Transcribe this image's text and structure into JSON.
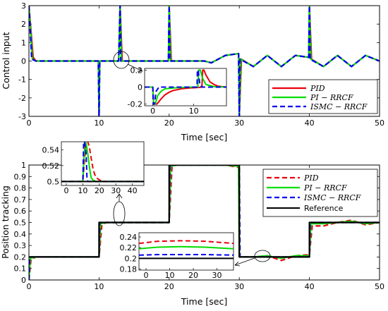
{
  "chart_data": [
    {
      "type": "line",
      "xlabel": "Time [sec]",
      "ylabel": "Control input",
      "xlim": [
        0,
        50
      ],
      "ylim": [
        -3,
        3
      ],
      "xticks": [
        0,
        10,
        20,
        30,
        40,
        50
      ],
      "yticks": [
        -3,
        -2,
        -1,
        0,
        1,
        2,
        3
      ],
      "legend_position": "bottom-right",
      "series": [
        {
          "name": "PID",
          "color": "#e8000b",
          "dash": "solid",
          "x": [
            0,
            0.6,
            1,
            9.9,
            10,
            10.1,
            11,
            12.8,
            13,
            13.3,
            15,
            19.9,
            20,
            20.3,
            25,
            26,
            28,
            29.9,
            30,
            30.3,
            32,
            34,
            36,
            38,
            39.9,
            40,
            40.3,
            42,
            44,
            46,
            48,
            50
          ],
          "y": [
            3,
            0.2,
            0,
            0,
            -3,
            0,
            0,
            0,
            3,
            0,
            0,
            0,
            3,
            0,
            0,
            -0.1,
            0.3,
            0.4,
            -3,
            0.1,
            -0.3,
            0.3,
            -0.3,
            0.3,
            0.2,
            3,
            0.1,
            -0.3,
            0.3,
            -0.3,
            0.3,
            0
          ]
        },
        {
          "name": "PI − RRCF",
          "color": "#00dd00",
          "dash": "solid",
          "x": [
            0,
            0.5,
            1,
            9.9,
            10,
            10.1,
            11,
            12.8,
            13,
            13.2,
            15,
            19.9,
            20,
            20.2,
            25,
            26,
            28,
            29.9,
            30,
            30.2,
            32,
            34,
            36,
            38,
            39.9,
            40,
            40.2,
            42,
            44,
            46,
            48,
            50
          ],
          "y": [
            3,
            0.1,
            0,
            0,
            -3,
            0,
            0,
            0,
            3,
            0,
            0,
            0,
            3,
            0,
            0,
            -0.1,
            0.3,
            0.4,
            -3,
            0.1,
            -0.3,
            0.3,
            -0.3,
            0.3,
            0.2,
            3,
            0.1,
            -0.3,
            0.3,
            -0.3,
            0.3,
            0
          ]
        },
        {
          "name": "ISMC − RRCF",
          "color": "#0000ee",
          "dash": "dashed",
          "x": [
            0,
            0.4,
            1,
            9.9,
            10,
            10.1,
            11,
            12.8,
            13,
            13.1,
            15,
            19.9,
            20,
            20.1,
            25,
            26,
            28,
            29.9,
            30,
            30.1,
            32,
            34,
            36,
            38,
            39.9,
            40,
            40.1,
            42,
            44,
            46,
            48,
            50
          ],
          "y": [
            3,
            0.1,
            0,
            0,
            -3,
            0,
            0,
            0,
            3,
            0,
            0,
            0,
            3,
            0,
            0,
            -0.1,
            0.3,
            0.4,
            -3,
            0.1,
            -0.3,
            0.3,
            -0.3,
            0.3,
            0.2,
            3,
            0.1,
            -0.3,
            0.3,
            -0.3,
            0.3,
            0
          ]
        }
      ],
      "inset": {
        "xticks": [
          0,
          10
        ],
        "yticks": [
          -0.2,
          0,
          0.2
        ],
        "xlim": [
          -2,
          18
        ],
        "ylim": [
          -0.22,
          0.22
        ],
        "series": [
          {
            "name": "PID",
            "color": "#e8000b",
            "dash": "solid",
            "x": [
              -2,
              0,
              0.2,
              1,
              2,
              3,
              4,
              5,
              7,
              9,
              11,
              12,
              12.2,
              12.5,
              13,
              14,
              15,
              16,
              18
            ],
            "y": [
              0,
              0,
              -0.2,
              -0.2,
              -0.14,
              -0.09,
              -0.06,
              -0.04,
              -0.02,
              -0.01,
              -0.005,
              0,
              0.2,
              0.2,
              0.14,
              0.06,
              0.03,
              0.01,
              0
            ]
          },
          {
            "name": "PI − RRCF",
            "color": "#00dd00",
            "dash": "solid",
            "x": [
              -2,
              0,
              0.2,
              0.6,
              1.2,
              2,
              3,
              5,
              9,
              11,
              11.2,
              11.6,
              12.2,
              13,
              15,
              18
            ],
            "y": [
              0,
              0,
              -0.2,
              -0.2,
              -0.1,
              -0.05,
              -0.02,
              -0.01,
              0,
              0,
              0.2,
              0.2,
              0.1,
              0.03,
              0.005,
              0
            ]
          },
          {
            "name": "ISMC − RRCF",
            "color": "#0000ee",
            "dash": "dashed",
            "x": [
              -2,
              0,
              0.1,
              0.4,
              0.8,
              1.5,
              3,
              9,
              10.8,
              10.9,
              11.1,
              11.5,
              12,
              18
            ],
            "y": [
              0,
              0,
              -0.2,
              -0.2,
              -0.05,
              0,
              0,
              0,
              0,
              0.2,
              0.2,
              0.03,
              0,
              0
            ]
          }
        ]
      }
    },
    {
      "type": "line",
      "xlabel": "Time [sec]",
      "ylabel": "Position tracking",
      "xlim": [
        0,
        50
      ],
      "ylim": [
        0,
        1
      ],
      "xticks": [
        0,
        10,
        20,
        30,
        40,
        50
      ],
      "yticks": [
        0,
        0.1,
        0.2,
        0.3,
        0.4,
        0.5,
        0.6,
        0.7,
        0.8,
        0.9,
        1
      ],
      "legend_position": "top-right",
      "series": [
        {
          "name": "PID",
          "color": "#e8000b",
          "dash": "dashed",
          "x": [
            0,
            0.3,
            1,
            10,
            10.4,
            11,
            20,
            20.4,
            21,
            28,
            29.9,
            30,
            30.4,
            32,
            34,
            36,
            38,
            40,
            40.4,
            42,
            44,
            46,
            48,
            50
          ],
          "y": [
            0,
            0.18,
            0.2,
            0.2,
            0.48,
            0.5,
            0.5,
            0.98,
            1,
            1,
            0.98,
            0.22,
            0.2,
            0.2,
            0.21,
            0.17,
            0.21,
            0.22,
            0.47,
            0.47,
            0.5,
            0.52,
            0.48,
            0.5
          ]
        },
        {
          "name": "PI − RRCF",
          "color": "#00dd00",
          "dash": "solid",
          "x": [
            0,
            0.2,
            1,
            10,
            10.2,
            11,
            20,
            20.2,
            21,
            28,
            29.9,
            30,
            30.2,
            32,
            34,
            36,
            38,
            40,
            40.2,
            42,
            44,
            46,
            48,
            50
          ],
          "y": [
            0,
            0.19,
            0.2,
            0.2,
            0.49,
            0.5,
            0.5,
            0.99,
            1,
            1,
            0.99,
            0.21,
            0.2,
            0.2,
            0.21,
            0.19,
            0.21,
            0.21,
            0.49,
            0.49,
            0.5,
            0.51,
            0.49,
            0.5
          ]
        },
        {
          "name": "ISMC − RRCF",
          "color": "#0000ee",
          "dash": "dashed",
          "x": [
            0,
            0.1,
            1,
            10,
            10.1,
            11,
            20,
            20.1,
            21,
            30,
            30.1,
            40,
            40.1,
            42,
            44,
            46,
            48,
            50
          ],
          "y": [
            0,
            0.2,
            0.2,
            0.2,
            0.5,
            0.5,
            0.5,
            1,
            1,
            1,
            0.2,
            0.2,
            0.5,
            0.5,
            0.5,
            0.5,
            0.5,
            0.5
          ]
        },
        {
          "name": "Reference",
          "color": "#000000",
          "dash": "solid",
          "x": [
            0,
            0,
            10,
            10,
            20,
            20,
            30,
            30,
            40,
            40,
            50
          ],
          "y": [
            0.2,
            0.2,
            0.2,
            0.5,
            0.5,
            1,
            1,
            0.2,
            0.2,
            0.5,
            0.5
          ]
        }
      ],
      "insets": [
        {
          "xticks": [
            0,
            10,
            20,
            30,
            40
          ],
          "yticks": [
            0.5,
            0.52,
            0.54
          ],
          "xlim": [
            -3,
            47
          ],
          "ylim": [
            0.495,
            0.55
          ],
          "series": [
            {
              "name": "PID",
              "color": "#e8000b",
              "dash": "dashed",
              "x": [
                -3,
                10,
                12,
                13,
                14,
                15,
                16,
                17,
                18,
                20,
                22,
                47
              ],
              "y": [
                0.5,
                0.5,
                0.55,
                0.55,
                0.543,
                0.53,
                0.518,
                0.51,
                0.505,
                0.502,
                0.5,
                0.5
              ]
            },
            {
              "name": "PI − RRCF",
              "color": "#00dd00",
              "dash": "solid",
              "x": [
                -3,
                10,
                11.2,
                12,
                13,
                14,
                15,
                16,
                18,
                47
              ],
              "y": [
                0.5,
                0.5,
                0.55,
                0.548,
                0.535,
                0.518,
                0.505,
                0.502,
                0.5,
                0.5
              ]
            },
            {
              "name": "ISMC − RRCF",
              "color": "#0000ee",
              "dash": "dashed",
              "x": [
                -3,
                10,
                10.5,
                11,
                12,
                12.5,
                13,
                47
              ],
              "y": [
                0.5,
                0.5,
                0.55,
                0.55,
                0.535,
                0.505,
                0.5,
                0.5
              ]
            },
            {
              "name": "Reference",
              "color": "#000000",
              "dash": "solid",
              "x": [
                -3,
                47
              ],
              "y": [
                0.5,
                0.5
              ]
            }
          ]
        },
        {
          "xticks": [
            0,
            10,
            20,
            30
          ],
          "yticks": [
            0.18,
            0.2,
            0.22,
            0.24
          ],
          "xlim": [
            -3,
            37
          ],
          "ylim": [
            0.178,
            0.248
          ],
          "series": [
            {
              "name": "PID",
              "color": "#e8000b",
              "dash": "dashed",
              "x": [
                -3,
                5,
                15,
                25,
                37
              ],
              "y": [
                0.228,
                0.232,
                0.233,
                0.232,
                0.228
              ]
            },
            {
              "name": "PI − RRCF",
              "color": "#00dd00",
              "dash": "solid",
              "x": [
                -3,
                5,
                15,
                25,
                37
              ],
              "y": [
                0.218,
                0.221,
                0.222,
                0.221,
                0.218
              ]
            },
            {
              "name": "ISMC − RRCF",
              "color": "#0000ee",
              "dash": "dashed",
              "x": [
                -3,
                5,
                15,
                25,
                37
              ],
              "y": [
                0.206,
                0.207,
                0.207,
                0.207,
                0.206
              ]
            },
            {
              "name": "Reference",
              "color": "#000000",
              "dash": "solid",
              "x": [
                -3,
                37
              ],
              "y": [
                0.2,
                0.2
              ]
            }
          ]
        }
      ]
    }
  ]
}
